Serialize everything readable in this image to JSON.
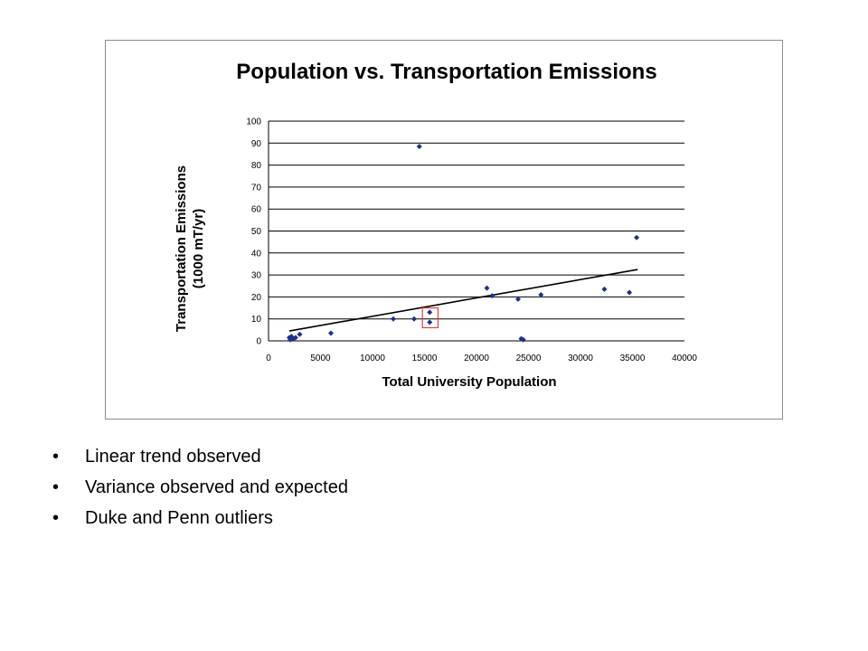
{
  "chart_data": {
    "type": "scatter",
    "title": "Population vs. Transportation Emissions",
    "xlabel": "Total University Population",
    "ylabel": [
      "Transportation Emissions",
      "(1000 mT/yr)"
    ],
    "xlim": [
      0,
      40000
    ],
    "ylim": [
      0,
      100
    ],
    "xticks": [
      0,
      5000,
      10000,
      15000,
      20000,
      25000,
      30000,
      35000,
      40000
    ],
    "yticks": [
      0,
      10,
      20,
      30,
      40,
      50,
      60,
      70,
      80,
      90,
      100
    ],
    "grid": "horizontal",
    "marker_color": "#1f2f8f",
    "points": [
      {
        "x": 2000,
        "y": 1.5
      },
      {
        "x": 2100,
        "y": 0.5
      },
      {
        "x": 2200,
        "y": 2
      },
      {
        "x": 2400,
        "y": 1
      },
      {
        "x": 2600,
        "y": 1.5
      },
      {
        "x": 3000,
        "y": 3
      },
      {
        "x": 6000,
        "y": 3.5
      },
      {
        "x": 12000,
        "y": 10
      },
      {
        "x": 14000,
        "y": 10
      },
      {
        "x": 14500,
        "y": 88.5
      },
      {
        "x": 15500,
        "y": 8.5
      },
      {
        "x": 15500,
        "y": 13
      },
      {
        "x": 21000,
        "y": 24
      },
      {
        "x": 21500,
        "y": 20.5
      },
      {
        "x": 24000,
        "y": 19
      },
      {
        "x": 24300,
        "y": 1
      },
      {
        "x": 24500,
        "y": 0.5
      },
      {
        "x": 26200,
        "y": 21
      },
      {
        "x": 32300,
        "y": 23.5
      },
      {
        "x": 34700,
        "y": 22
      },
      {
        "x": 35400,
        "y": 47
      }
    ],
    "trendline": {
      "x": [
        2000,
        35500
      ],
      "y": [
        4.5,
        32.5
      ],
      "color": "#000000"
    },
    "highlight_box": {
      "x": [
        14800,
        16300
      ],
      "y": [
        6,
        15
      ],
      "color": "#e04040"
    }
  },
  "bullets": [
    "Linear trend observed",
    "Variance observed and expected",
    "Duke and Penn outliers"
  ],
  "bullet_char": "•"
}
